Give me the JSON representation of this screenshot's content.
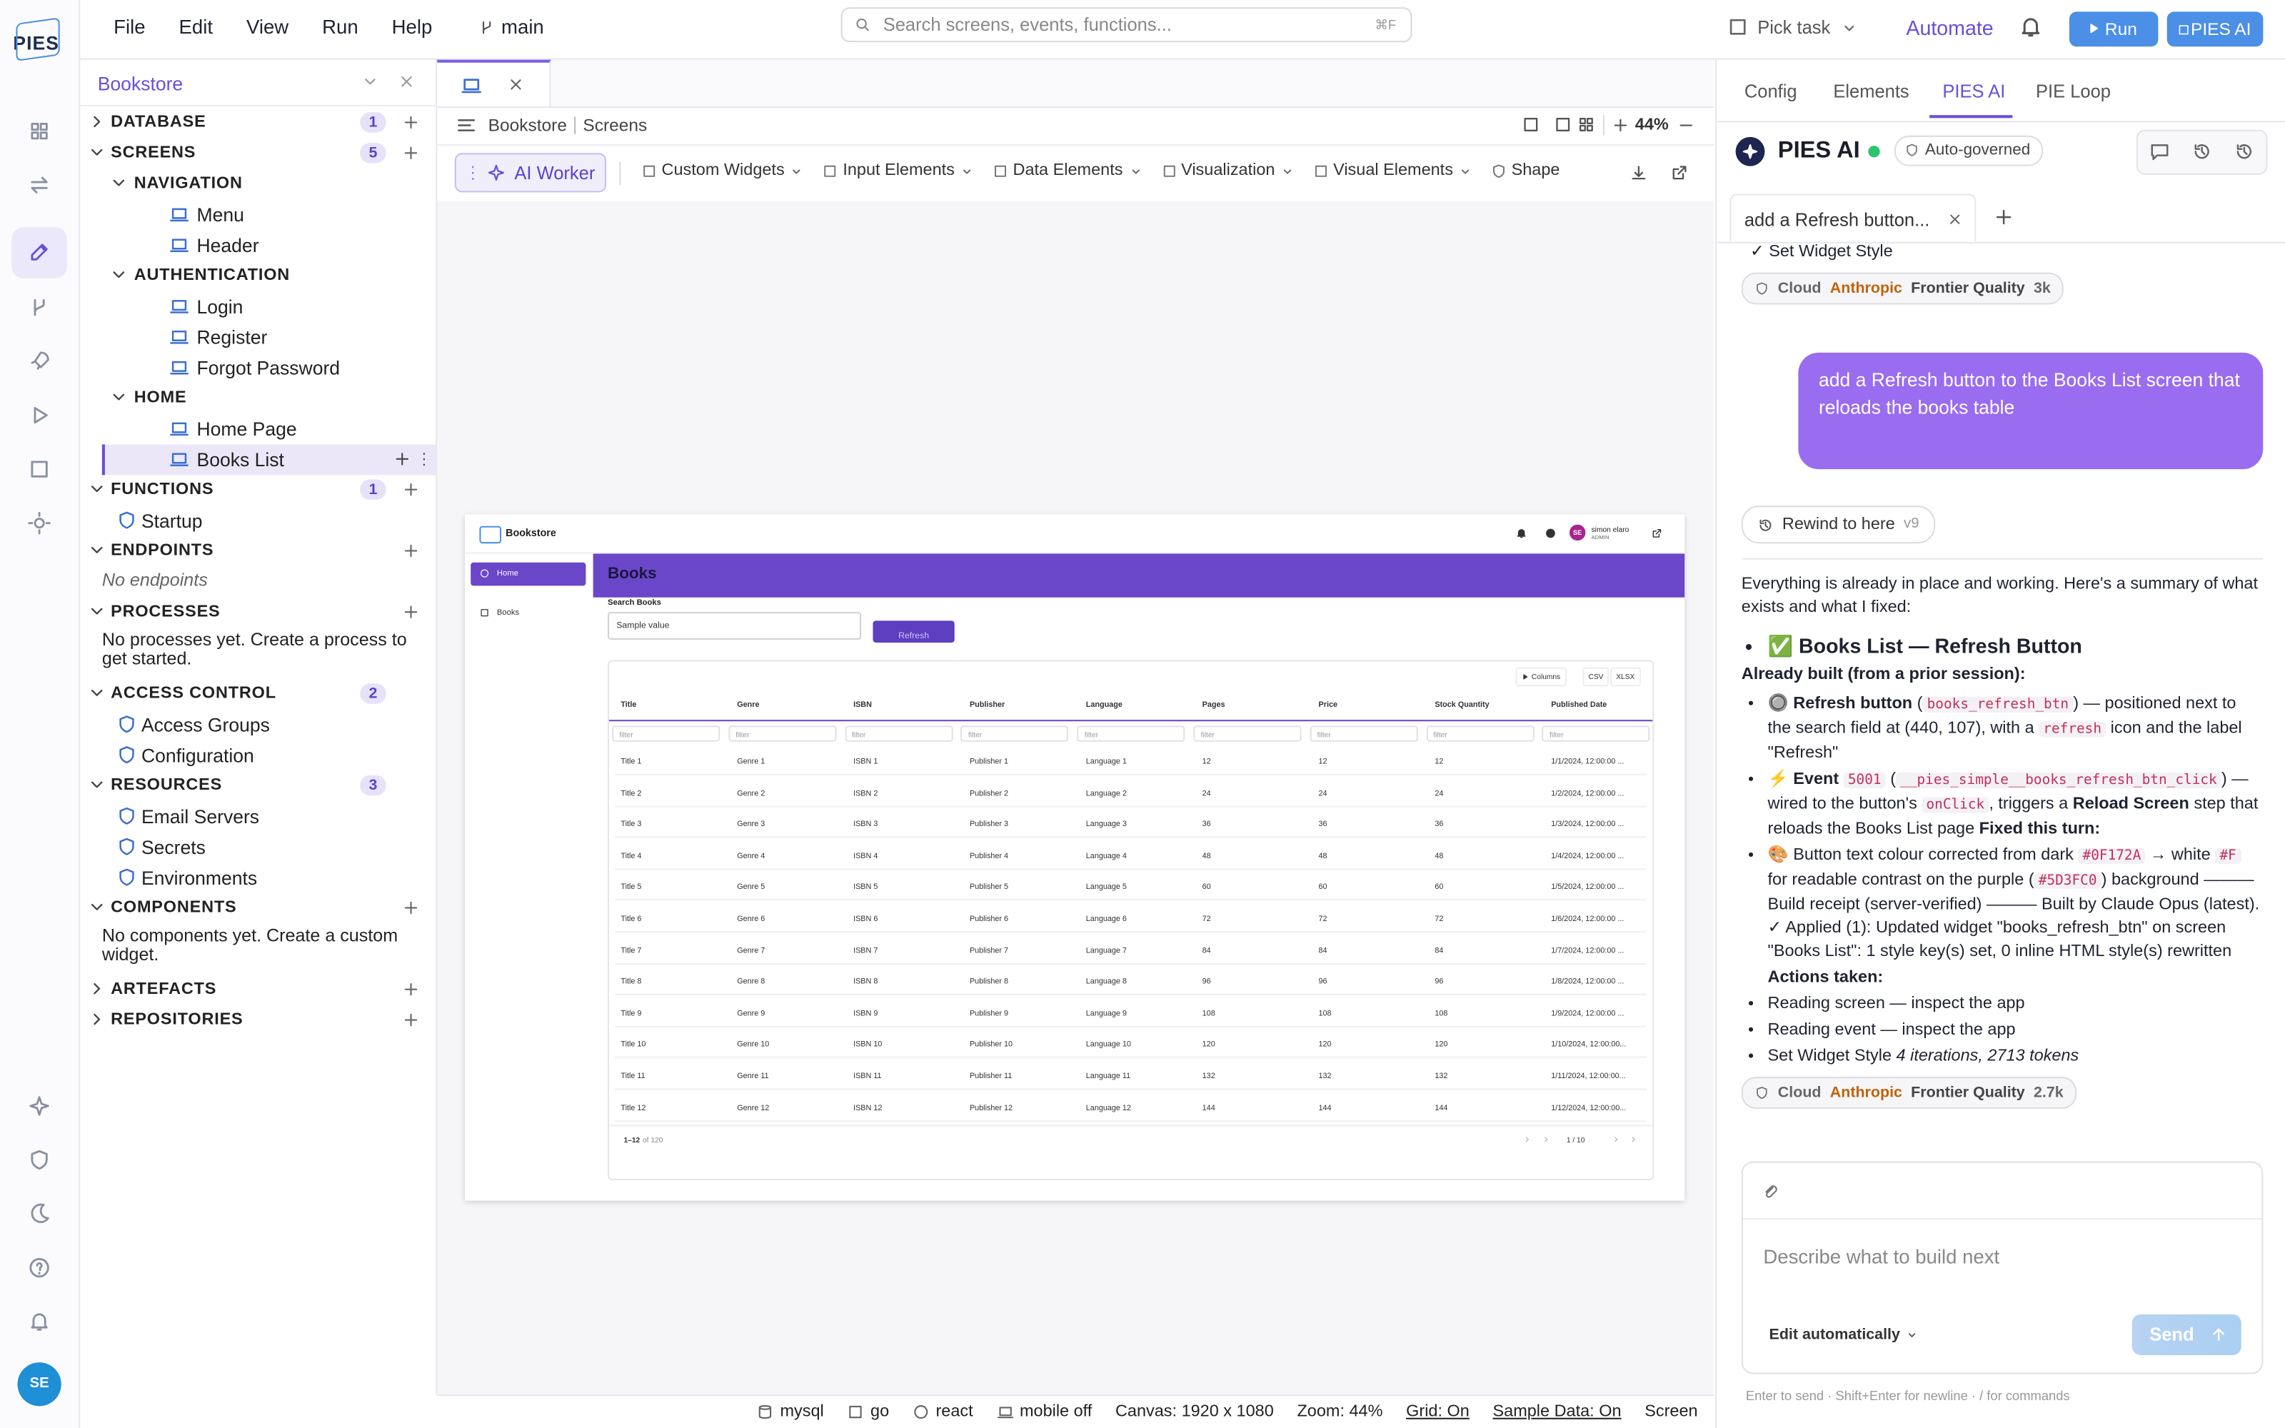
{
  "logo": "PIES",
  "user_initials": "SE",
  "menu": [
    "File",
    "Edit",
    "View",
    "Run",
    "Help"
  ],
  "branch": "main",
  "search": {
    "placeholder": "Search screens, events, functions...",
    "shortcut": "⌘F"
  },
  "actions": {
    "pick_task": "Pick task",
    "automate": "Automate",
    "run": "Run",
    "pies_ai": "PIES AI"
  },
  "explorer": {
    "project": "Bookstore",
    "tree": [
      {
        "label": "DATABASE",
        "count": 1
      },
      {
        "label": "SCREENS",
        "count": 5,
        "children": [
          {
            "label": "NAVIGATION",
            "children": [
              {
                "label": "Menu"
              },
              {
                "label": "Header"
              }
            ]
          },
          {
            "label": "AUTHENTICATION",
            "children": [
              {
                "label": "Login"
              },
              {
                "label": "Register"
              },
              {
                "label": "Forgot Password"
              }
            ]
          },
          {
            "label": "HOME",
            "children": [
              {
                "label": "Home Page"
              },
              {
                "label": "Books List"
              }
            ]
          }
        ]
      },
      {
        "label": "FUNCTIONS",
        "count": 1,
        "children": [
          {
            "label": "Startup"
          }
        ]
      },
      {
        "label": "ENDPOINTS",
        "note": "No endpoints"
      },
      {
        "label": "PROCESSES",
        "note": "No processes yet. Create a process to get started."
      },
      {
        "label": "ACCESS CONTROL",
        "count": 2,
        "children": [
          {
            "label": "Access Groups"
          },
          {
            "label": "Configuration"
          }
        ]
      },
      {
        "label": "RESOURCES",
        "count": 3,
        "children": [
          {
            "label": "Email Servers"
          },
          {
            "label": "Secrets"
          },
          {
            "label": "Environments"
          }
        ]
      },
      {
        "label": "COMPONENTS",
        "note": "No components yet. Create a custom widget."
      },
      {
        "label": "ARTEFACTS"
      },
      {
        "label": "REPOSITORIES"
      }
    ]
  },
  "editor": {
    "breadcrumb": [
      "Bookstore",
      "Screens"
    ],
    "zoom": "44%",
    "toolbar": [
      "AI Worker",
      "Custom Widgets",
      "Input Elements",
      "Data Elements",
      "Visualization",
      "Visual Elements",
      "Shape"
    ]
  },
  "preview": {
    "app": "Bookstore",
    "user": {
      "initials": "SE",
      "name": "simon elaro",
      "role": "ADMIN"
    },
    "nav": [
      "Home",
      "Books"
    ],
    "page_title": "Books",
    "search_label": "Search Books",
    "search_value": "Sample value",
    "button": "Refresh",
    "table_tools": [
      "Columns",
      "CSV",
      "XLSX"
    ],
    "columns": [
      "Title",
      "Genre",
      "ISBN",
      "Publisher",
      "Language",
      "Pages",
      "Price",
      "Stock Quantity",
      "Published Date"
    ],
    "filter": "filter",
    "rows": [
      [
        "Title 1",
        "Genre 1",
        "ISBN 1",
        "Publisher 1",
        "Language 1",
        "12",
        "12",
        "12",
        "1/1/2024, 12:00:00 ..."
      ],
      [
        "Title 2",
        "Genre 2",
        "ISBN 2",
        "Publisher 2",
        "Language 2",
        "24",
        "24",
        "24",
        "1/2/2024, 12:00:00 ..."
      ],
      [
        "Title 3",
        "Genre 3",
        "ISBN 3",
        "Publisher 3",
        "Language 3",
        "36",
        "36",
        "36",
        "1/3/2024, 12:00:00 ..."
      ],
      [
        "Title 4",
        "Genre 4",
        "ISBN 4",
        "Publisher 4",
        "Language 4",
        "48",
        "48",
        "48",
        "1/4/2024, 12:00:00 ..."
      ],
      [
        "Title 5",
        "Genre 5",
        "ISBN 5",
        "Publisher 5",
        "Language 5",
        "60",
        "60",
        "60",
        "1/5/2024, 12:00:00 ..."
      ],
      [
        "Title 6",
        "Genre 6",
        "ISBN 6",
        "Publisher 6",
        "Language 6",
        "72",
        "72",
        "72",
        "1/6/2024, 12:00:00 ..."
      ],
      [
        "Title 7",
        "Genre 7",
        "ISBN 7",
        "Publisher 7",
        "Language 7",
        "84",
        "84",
        "84",
        "1/7/2024, 12:00:00 ..."
      ],
      [
        "Title 8",
        "Genre 8",
        "ISBN 8",
        "Publisher 8",
        "Language 8",
        "96",
        "96",
        "96",
        "1/8/2024, 12:00:00 ..."
      ],
      [
        "Title 9",
        "Genre 9",
        "ISBN 9",
        "Publisher 9",
        "Language 9",
        "108",
        "108",
        "108",
        "1/9/2024, 12:00:00 ..."
      ],
      [
        "Title 10",
        "Genre 10",
        "ISBN 10",
        "Publisher 10",
        "Language 10",
        "120",
        "120",
        "120",
        "1/10/2024, 12:00:00..."
      ],
      [
        "Title 11",
        "Genre 11",
        "ISBN 11",
        "Publisher 11",
        "Language 11",
        "132",
        "132",
        "132",
        "1/11/2024, 12:00:00..."
      ],
      [
        "Title 12",
        "Genre 12",
        "ISBN 12",
        "Publisher 12",
        "Language 12",
        "144",
        "144",
        "144",
        "1/12/2024, 12:00:00..."
      ]
    ],
    "range": "1–12",
    "total": "of 120",
    "page": "1 / 10"
  },
  "status_bar": [
    "mysql",
    "go",
    "react",
    "mobile off",
    "Canvas: 1920 x 1080",
    "Zoom: 44%",
    "Grid: On",
    "Sample Data: On",
    "Screen"
  ],
  "assistant": {
    "tabs": [
      "Config",
      "Elements",
      "PIES AI",
      "PIE Loop"
    ],
    "title": "PIES AI",
    "mode": "Auto-governed",
    "chat_tab": "add a Refresh button...",
    "prev_step": "✓ Set Widget Style",
    "badges": [
      {
        "cloud": "Cloud",
        "provider": "Anthropic",
        "quality": "Frontier Quality",
        "tokens": "3k"
      },
      {
        "cloud": "Cloud",
        "provider": "Anthropic",
        "quality": "Frontier Quality",
        "tokens": "2.7k"
      }
    ],
    "user_message": "add a Refresh button to the Books List screen that reloads the books table",
    "rewind": "Rewind to here",
    "version": "v9",
    "summary": "Everything is already in place and working. Here's a summary of what exists and what I fixed:",
    "heading": "✅ Books List — Refresh Button",
    "built_heading": "Already built (from a prior session):",
    "built": [
      [
        "🔘 ",
        {
          "t": "Refresh button",
          "s": "b"
        },
        " (",
        {
          "t": "books_refresh_btn",
          "s": "code"
        },
        ") — positioned next to the search field at (440, 107), with a ",
        {
          "t": "refresh",
          "s": "code"
        },
        " icon and the label \"Refresh\""
      ],
      [
        "⚡ ",
        {
          "t": "Event",
          "s": "b"
        },
        " ",
        {
          "t": "5001",
          "s": "code"
        },
        " (",
        {
          "t": "__pies_simple__books_refresh_btn_click",
          "s": "code"
        },
        ") — wired to the button's ",
        {
          "t": "onClick",
          "s": "code"
        },
        ", triggers a ",
        {
          "t": "Reload Screen",
          "s": "b"
        },
        " step that reloads the Books List page ",
        {
          "t": "Fixed this turn:",
          "s": "b"
        }
      ],
      [
        "🎨 Button text colour corrected from dark ",
        {
          "t": "#0F172A",
          "s": "code"
        },
        " → white ",
        {
          "t": "#F",
          "s": "code"
        },
        " for readable contrast on the purple (",
        {
          "t": "#5D3FC0",
          "s": "code"
        },
        ") background ——— Build receipt (server-verified) ——— Built by Claude Opus (latest). ✓ Applied (1): Updated widget \"books_refresh_btn\" on screen \"Books List\": 1 style key(s) set, 0 inline HTML style(s) rewritten"
      ]
    ],
    "actions_heading": "Actions taken:",
    "actions": [
      [
        "Reading screen — inspect the app"
      ],
      [
        "Reading event — inspect the app"
      ],
      [
        "Set Widget Style ",
        {
          "t": "4 iterations, 2713 tokens",
          "s": "i"
        }
      ]
    ],
    "input_placeholder": "Describe what to build next",
    "edit_mode": "Edit automatically",
    "send": "Send",
    "hint": "Enter to send · Shift+Enter for newline · / for commands"
  }
}
